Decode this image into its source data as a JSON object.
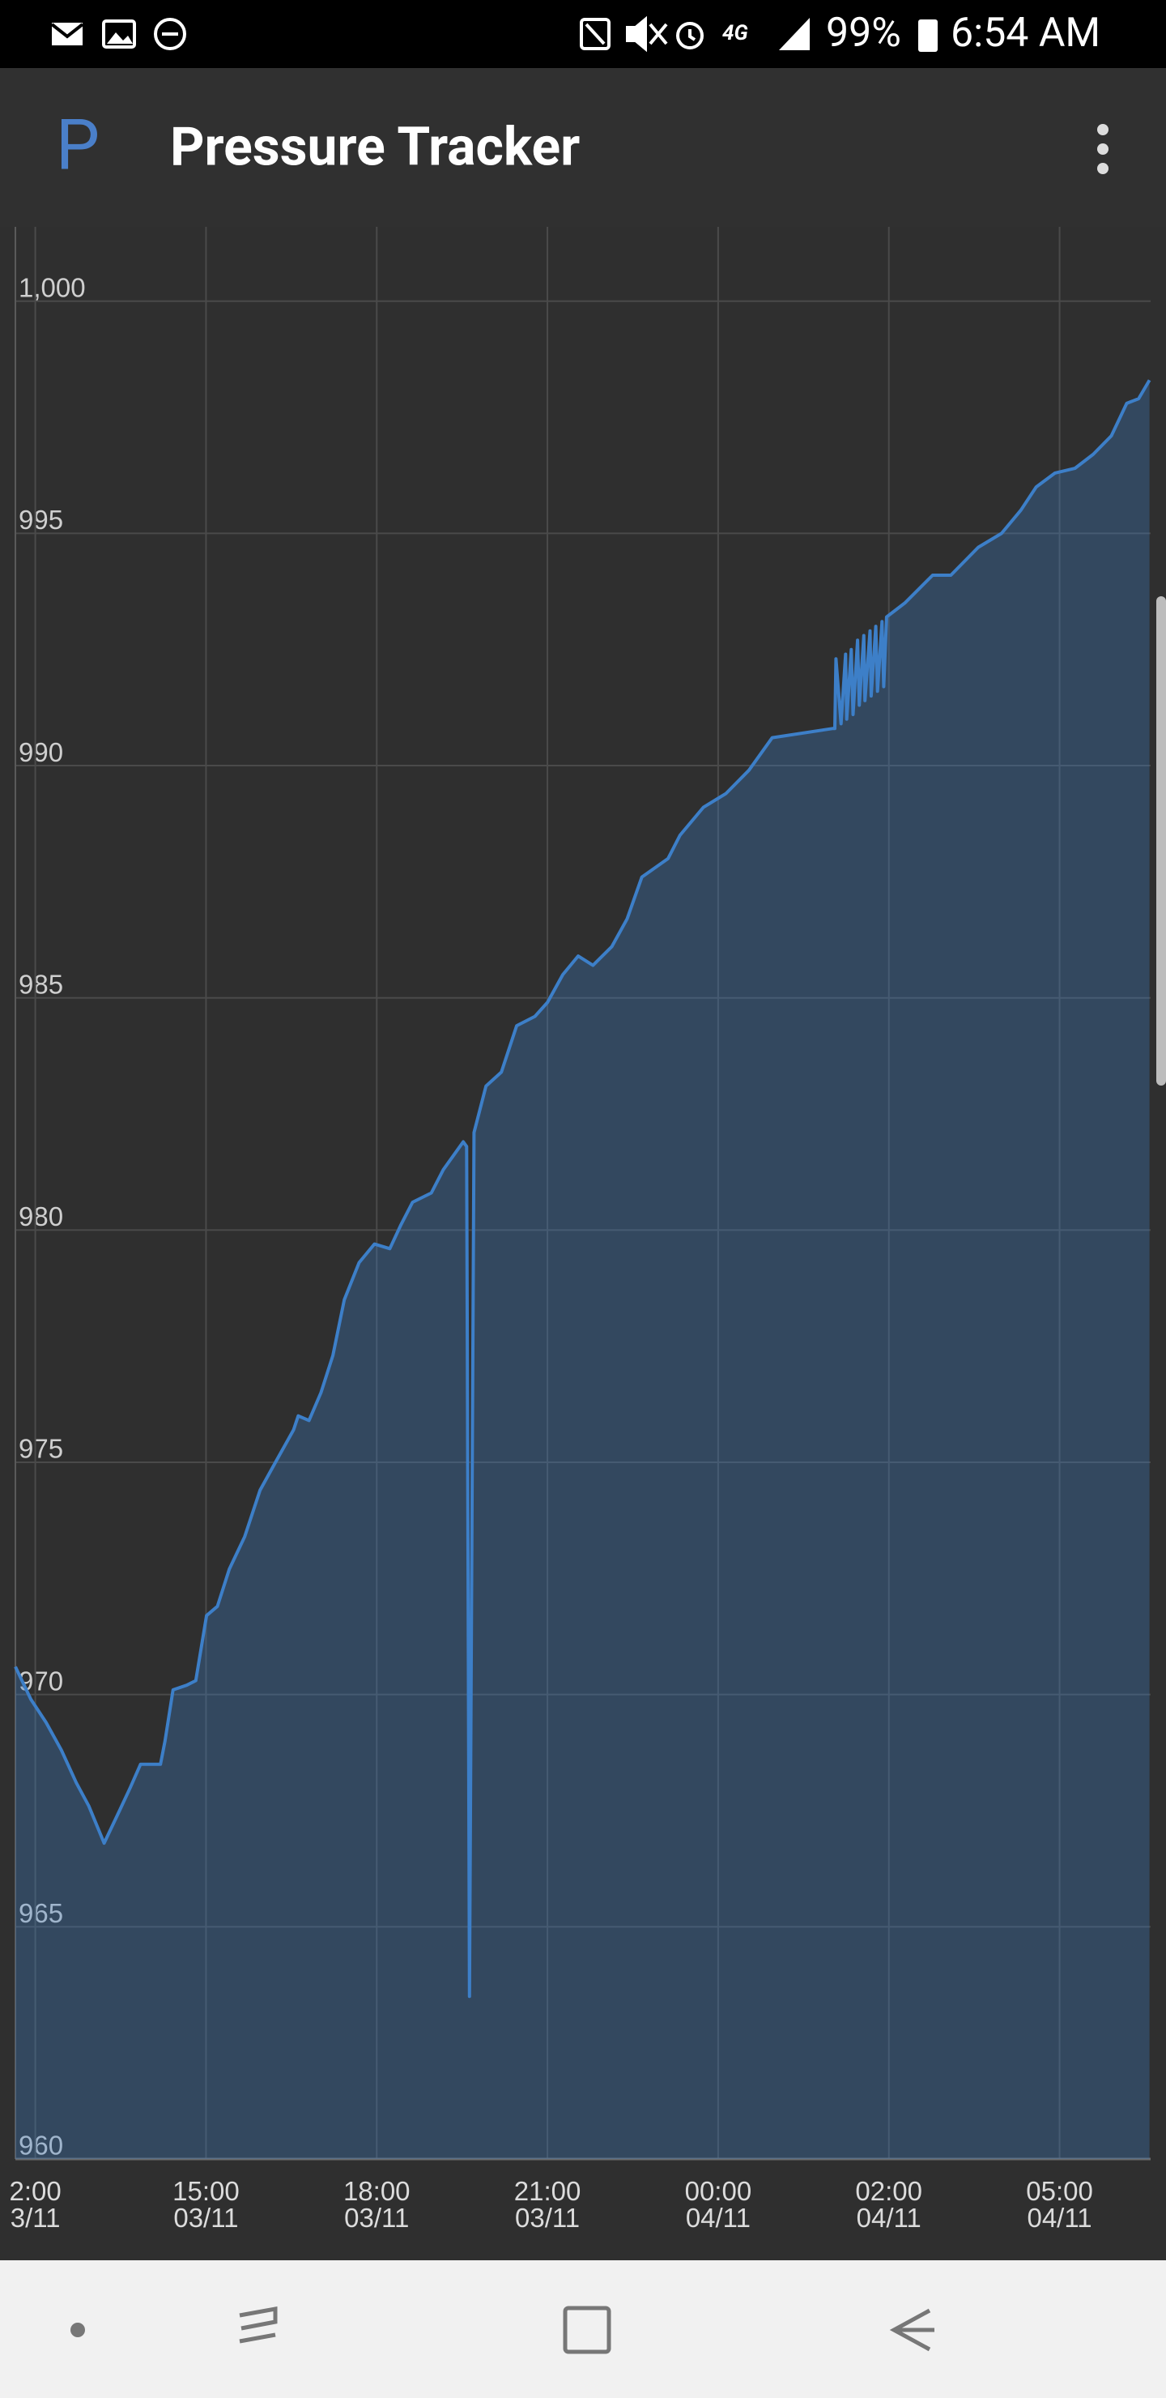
{
  "status_bar": {
    "battery": "99%",
    "time": "6:54 AM"
  },
  "app_bar": {
    "icon": "P",
    "title": "Pressure Tracker"
  },
  "chart_data": {
    "type": "area",
    "color": "#3d7fc8",
    "grid": true,
    "xlim": [
      -0.35,
      19.6
    ],
    "ylim": [
      960,
      1001.6
    ],
    "xticks": [
      {
        "value": 0,
        "label": "2:00\n3/11"
      },
      {
        "value": 3,
        "label": "15:00\n03/11"
      },
      {
        "value": 6,
        "label": "18:00\n03/11"
      },
      {
        "value": 9,
        "label": "21:00\n03/11"
      },
      {
        "value": 12,
        "label": "00:00\n04/11"
      },
      {
        "value": 15,
        "label": "02:00\n04/11"
      },
      {
        "value": 18,
        "label": "05:00\n04/11"
      }
    ],
    "yticks": [
      960,
      965,
      970,
      975,
      980,
      985,
      990,
      995,
      {
        "value": 1000,
        "label": "1,000"
      }
    ],
    "x": [
      -0.35,
      -0.08,
      0.19,
      0.46,
      0.72,
      0.94,
      1.21,
      1.48,
      1.67,
      1.85,
      2.2,
      2.28,
      2.42,
      2.66,
      2.82,
      3.01,
      3.2,
      3.41,
      3.68,
      3.95,
      4.22,
      4.54,
      4.62,
      4.81,
      5.02,
      5.23,
      5.43,
      5.69,
      5.96,
      6.23,
      6.42,
      6.63,
      6.96,
      7.17,
      7.52,
      7.58,
      7.63,
      7.71,
      7.92,
      8.19,
      8.46,
      8.78,
      9.0,
      9.27,
      9.54,
      9.8,
      10.13,
      10.4,
      10.66,
      11.12,
      11.33,
      11.74,
      12.14,
      12.54,
      12.95,
      14.02,
      14.05,
      14.07,
      14.16,
      14.24,
      14.26,
      14.34,
      14.37,
      14.45,
      14.48,
      14.56,
      14.58,
      14.67,
      14.69,
      14.77,
      14.8,
      14.88,
      14.91,
      14.96,
      15.28,
      15.77,
      16.09,
      16.57,
      16.98,
      17.32,
      17.59,
      17.92,
      18.27,
      18.59,
      18.91,
      19.18,
      19.39,
      19.58
    ],
    "values": [
      970.6,
      969.9,
      969.4,
      968.8,
      968.1,
      967.6,
      966.8,
      967.5,
      968.0,
      968.5,
      968.5,
      969.0,
      970.1,
      970.2,
      970.3,
      971.7,
      971.9,
      972.7,
      973.4,
      974.4,
      975.0,
      975.7,
      976.0,
      975.9,
      976.5,
      977.3,
      978.5,
      979.3,
      979.7,
      979.6,
      980.1,
      980.6,
      980.8,
      981.3,
      981.9,
      981.8,
      963.5,
      982.1,
      983.1,
      983.4,
      984.4,
      984.6,
      984.9,
      985.5,
      985.9,
      985.7,
      986.1,
      986.7,
      987.6,
      988.0,
      988.5,
      989.1,
      989.4,
      989.9,
      990.6,
      990.8,
      990.8,
      992.3,
      990.9,
      992.4,
      991.0,
      992.5,
      991.1,
      992.7,
      991.3,
      992.8,
      991.4,
      992.9,
      991.5,
      993.0,
      991.6,
      993.1,
      991.7,
      993.2,
      993.5,
      994.1,
      994.1,
      994.7,
      995.0,
      995.5,
      996.0,
      996.3,
      996.4,
      996.7,
      997.1,
      997.8,
      997.9,
      998.3
    ]
  }
}
